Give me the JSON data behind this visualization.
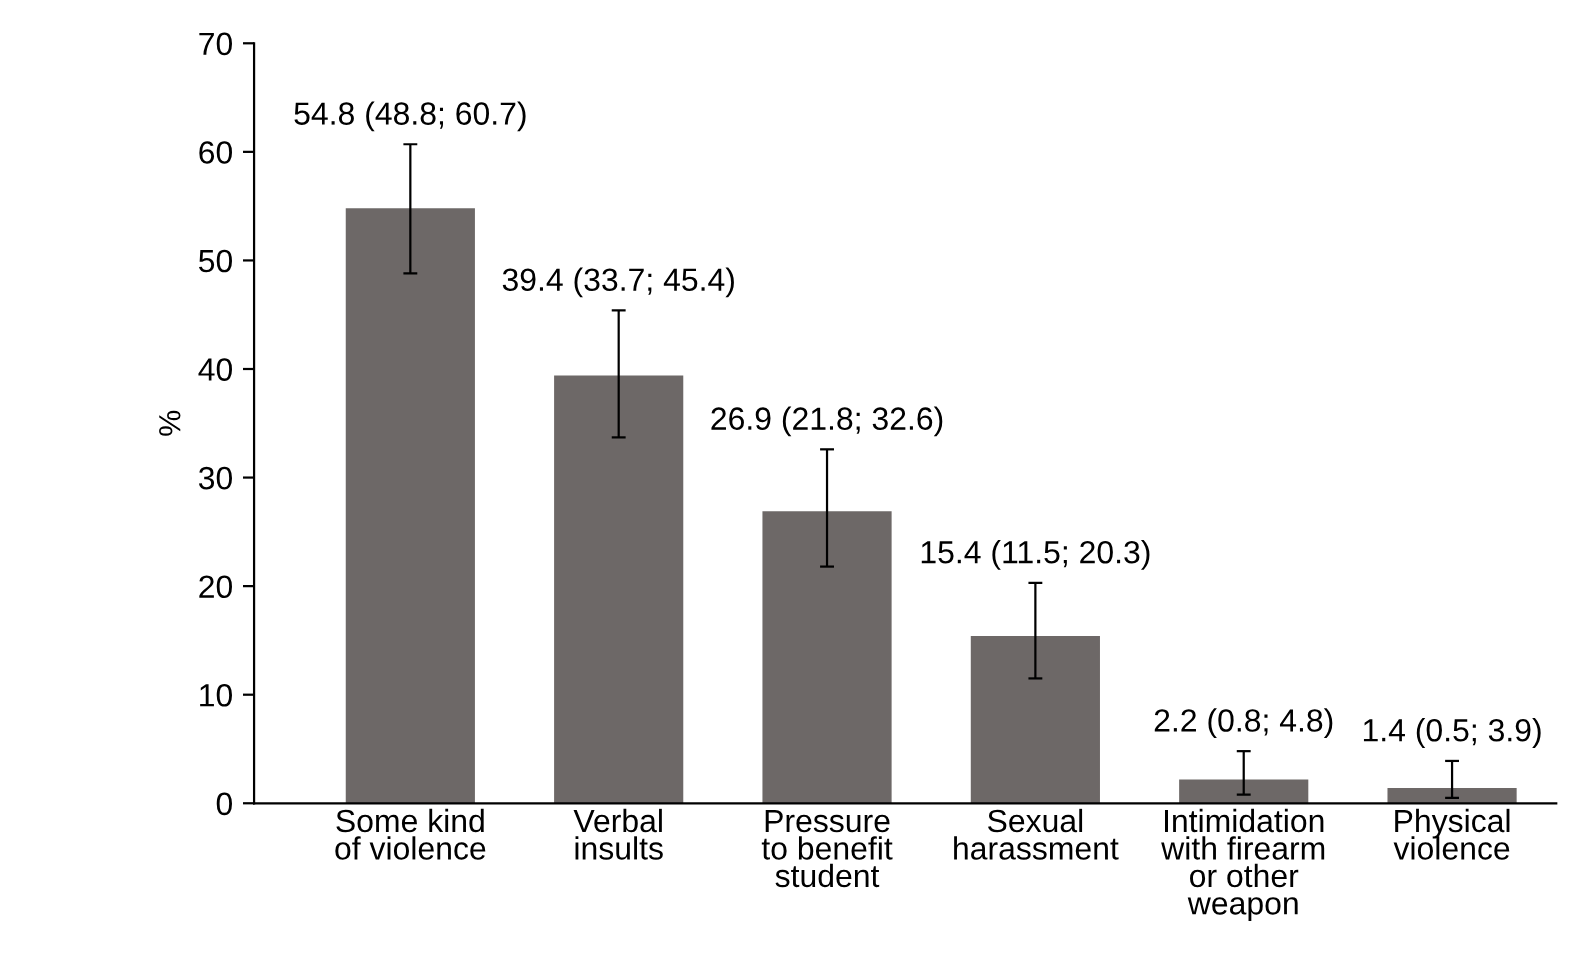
{
  "chart_data": {
    "type": "bar",
    "categories": [
      "Some kind\nof violence",
      "Verbal\ninsults",
      "Pressure\nto benefit\nstudent",
      "Sexual\nharassment",
      "Intimidation\nwith firearm\nor other\nweapon",
      "Physical\nviolence"
    ],
    "values": [
      54.8,
      39.4,
      26.9,
      15.4,
      2.2,
      1.4
    ],
    "errors": [
      [
        48.8,
        60.7
      ],
      [
        33.7,
        45.4
      ],
      [
        21.8,
        32.6
      ],
      [
        11.5,
        20.3
      ],
      [
        0.8,
        4.8
      ],
      [
        0.5,
        3.9
      ]
    ],
    "value_labels": [
      "54.8 (48.8; 60.7)",
      "39.4 (33.7; 45.4)",
      "26.9 (21.8; 32.6)",
      "15.4 (11.5; 20.3)",
      "2.2 (0.8; 4.8)",
      "1.4 (0.5; 3.9)"
    ],
    "color": "#6d6867",
    "ylabel": "%",
    "ylim": [
      0,
      70
    ],
    "yticks": [
      0,
      10,
      20,
      30,
      40,
      50,
      60,
      70
    ],
    "grid": false,
    "legend": false
  }
}
